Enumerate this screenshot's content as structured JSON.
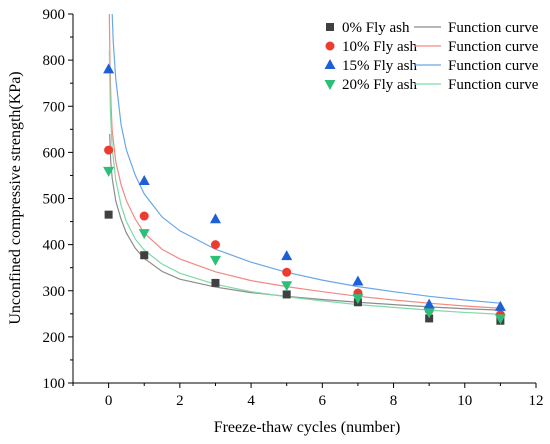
{
  "chart_data": {
    "type": "scatter",
    "xlabel": "Freeze-thaw cycles (number)",
    "ylabel": "Unconfined compressive strength(KPa)",
    "xlim": [
      -1,
      12
    ],
    "ylim": [
      100,
      900
    ],
    "xticks": [
      0,
      2,
      4,
      6,
      8,
      10,
      12
    ],
    "yticks": [
      100,
      200,
      300,
      400,
      500,
      600,
      700,
      800,
      900
    ],
    "grid": false,
    "legend_position": "top-right",
    "x": [
      0,
      1,
      3,
      5,
      7,
      9,
      11
    ],
    "series": [
      {
        "name": "0%  Fly ash",
        "marker": "square",
        "color": "#404040",
        "fit_label": "Function curve",
        "fit_color": "#8c8c8c",
        "values": [
          465,
          377,
          317,
          292,
          275,
          240,
          235
        ]
      },
      {
        "name": "10% Fly ash",
        "marker": "circle",
        "color": "#ee3b32",
        "fit_label": "Function curve",
        "fit_color": "#f08a84",
        "values": [
          605,
          462,
          400,
          340,
          295,
          258,
          248
        ]
      },
      {
        "name": "15% Fly ash",
        "marker": "triangle-up",
        "color": "#1f5fd6",
        "fit_label": "Function curve",
        "fit_color": "#6aa8e6",
        "values": [
          780,
          538,
          455,
          375,
          320,
          270,
          265
        ]
      },
      {
        "name": "20% Fly ash",
        "marker": "triangle-down",
        "color": "#2dbf78",
        "fit_label": "Function curve",
        "fit_color": "#7fd9a8",
        "values": [
          560,
          425,
          367,
          312,
          284,
          253,
          240
        ]
      }
    ],
    "fit_curves": [
      {
        "x": [
          0.03,
          0.06,
          0.1,
          0.2,
          0.35,
          0.5,
          0.75,
          1,
          1.5,
          2,
          3,
          4,
          5,
          6,
          7,
          8,
          9,
          10,
          11
        ],
        "values": [
          640,
          580,
          544,
          495,
          455,
          425,
          392,
          370,
          342,
          325,
          308,
          296,
          288,
          281,
          275,
          270,
          265,
          261,
          258
        ]
      },
      {
        "x": [
          0.02,
          0.04,
          0.07,
          0.1,
          0.2,
          0.35,
          0.5,
          0.75,
          1,
          1.5,
          2,
          3,
          4,
          5,
          6,
          7,
          8,
          9,
          10,
          11
        ],
        "values": [
          900,
          785,
          700,
          648,
          580,
          530,
          495,
          455,
          425,
          390,
          369,
          341,
          322,
          309,
          298,
          288,
          280,
          273,
          267,
          262
        ]
      },
      {
        "x": [
          0.1,
          0.13,
          0.2,
          0.35,
          0.5,
          0.75,
          1,
          1.5,
          2,
          3,
          4,
          5,
          6,
          7,
          8,
          9,
          10,
          11
        ],
        "values": [
          900,
          840,
          760,
          660,
          605,
          550,
          510,
          460,
          430,
          390,
          362,
          340,
          323,
          309,
          298,
          288,
          280,
          273
        ]
      },
      {
        "x": [
          0.02,
          0.05,
          0.1,
          0.2,
          0.35,
          0.5,
          0.75,
          1,
          1.5,
          2,
          3,
          4,
          5,
          6,
          7,
          8,
          9,
          10,
          11
        ],
        "values": [
          820,
          690,
          610,
          540,
          485,
          450,
          412,
          388,
          358,
          338,
          314,
          298,
          287,
          278,
          270,
          264,
          258,
          253,
          249
        ]
      }
    ]
  }
}
